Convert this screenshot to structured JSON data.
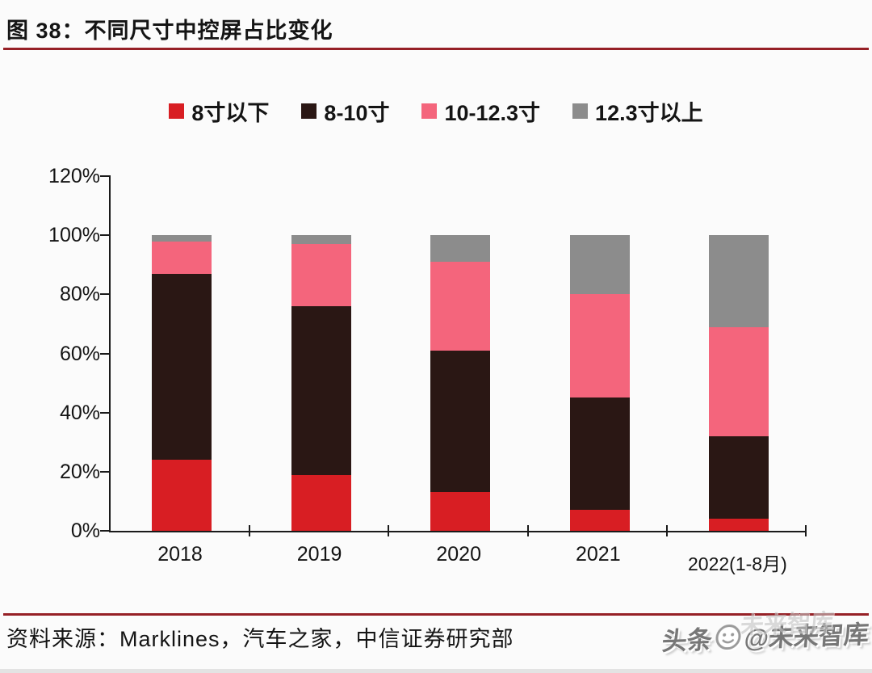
{
  "title": "图 38：不同尺寸中控屏占比变化",
  "chart_data": {
    "type": "bar",
    "stacked": true,
    "title": "不同尺寸中控屏占比变化",
    "categories": [
      "2018",
      "2019",
      "2020",
      "2021",
      "2022(1-8月)"
    ],
    "series": [
      {
        "name": "8寸以下",
        "color": "#d81e23",
        "values": [
          24,
          19,
          13,
          7,
          4
        ]
      },
      {
        "name": "8-10寸",
        "color": "#2a1714",
        "values": [
          63,
          57,
          48,
          38,
          28
        ]
      },
      {
        "name": "10-12.3寸",
        "color": "#f4657c",
        "values": [
          11,
          21,
          30,
          35,
          37
        ]
      },
      {
        "name": "12.3寸以上",
        "color": "#8c8c8c",
        "values": [
          2,
          3,
          9,
          20,
          31
        ]
      }
    ],
    "xlabel": "",
    "ylabel": "",
    "unit": "%",
    "ylim": [
      0,
      120
    ],
    "y_ticks": [
      "0%",
      "20%",
      "40%",
      "60%",
      "80%",
      "100%",
      "120%"
    ],
    "grid": false,
    "legend_position": "top"
  },
  "footer": {
    "source": "资料来源：Marklines，汽车之家，中信证券研究部"
  },
  "watermark": {
    "prefix": "头条",
    "handle": "@未来智库",
    "ghost": "未来智库"
  },
  "colors": {
    "rule_red": "#962026",
    "axis": "#1a1a1a",
    "background": "#fbfbfb"
  }
}
